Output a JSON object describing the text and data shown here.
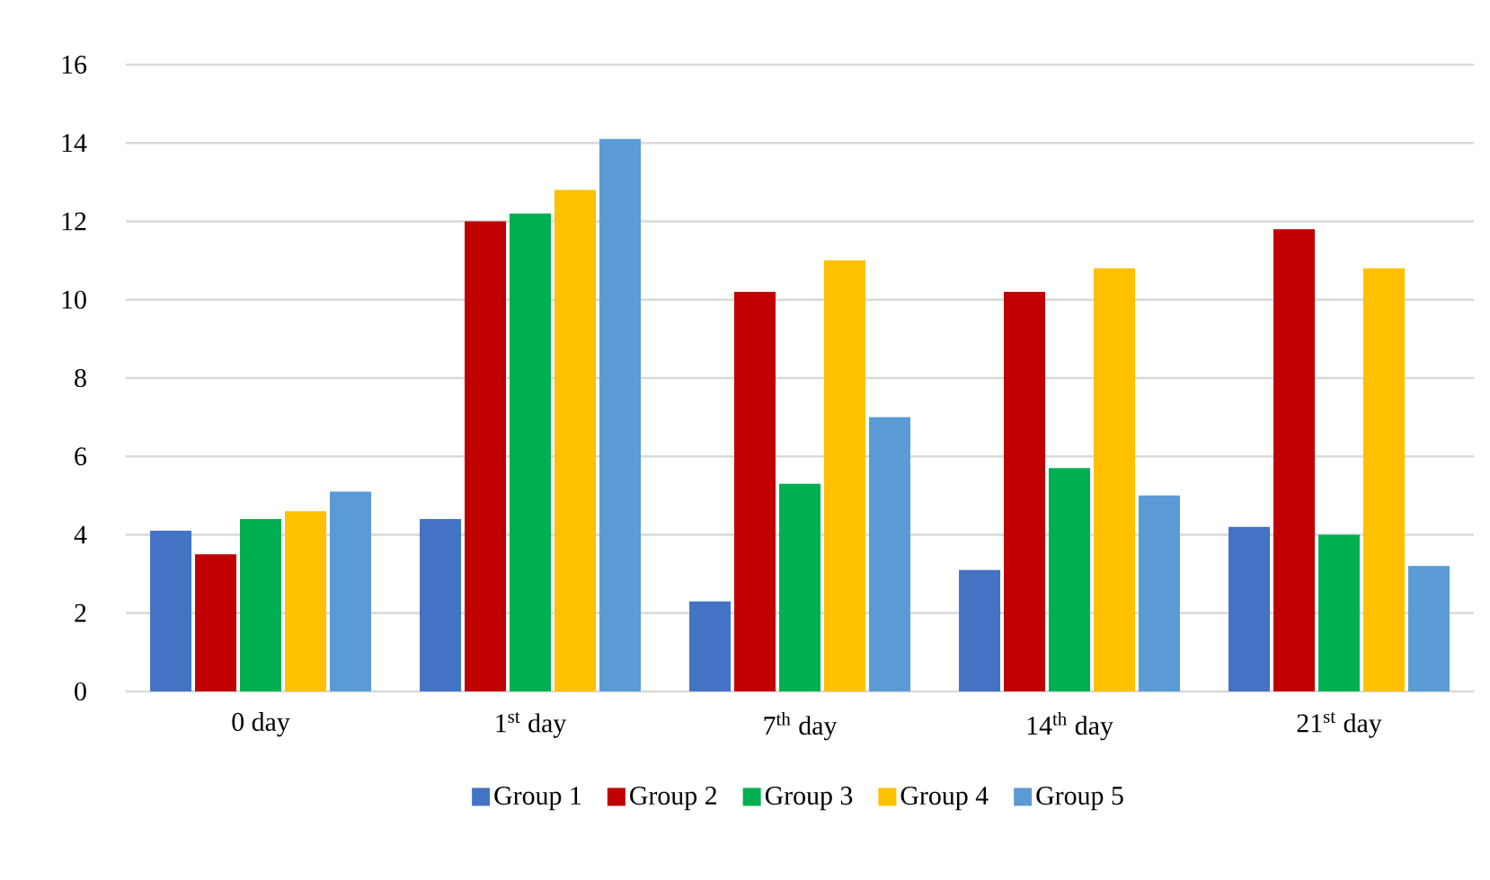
{
  "chart_data": {
    "type": "bar",
    "categories": [
      "0 day",
      "1$^{st}$ day",
      "7$^{th}$ day",
      "14$^{th}$ day",
      "21$^{st}$ day"
    ],
    "series": [
      {
        "name": "Group 1",
        "color": "#4472c4",
        "values": [
          4.1,
          4.4,
          2.3,
          3.1,
          4.2
        ]
      },
      {
        "name": "Group 2",
        "color": "#c00000",
        "values": [
          3.5,
          12.0,
          10.2,
          10.2,
          11.8
        ]
      },
      {
        "name": "Group 3",
        "color": "#00b050",
        "values": [
          4.4,
          12.2,
          5.3,
          5.7,
          4.0
        ]
      },
      {
        "name": "Group 4",
        "color": "#ffc000",
        "values": [
          4.6,
          12.8,
          11.0,
          10.8,
          10.8
        ]
      },
      {
        "name": "Group 5",
        "color": "#5b9bd5",
        "values": [
          5.1,
          14.1,
          7.0,
          5.0,
          3.2
        ]
      }
    ],
    "ylim": [
      0,
      16
    ],
    "yticks": [
      0,
      2,
      4,
      6,
      8,
      10,
      12,
      14,
      16
    ],
    "grid": "y",
    "legend": "bottom"
  }
}
